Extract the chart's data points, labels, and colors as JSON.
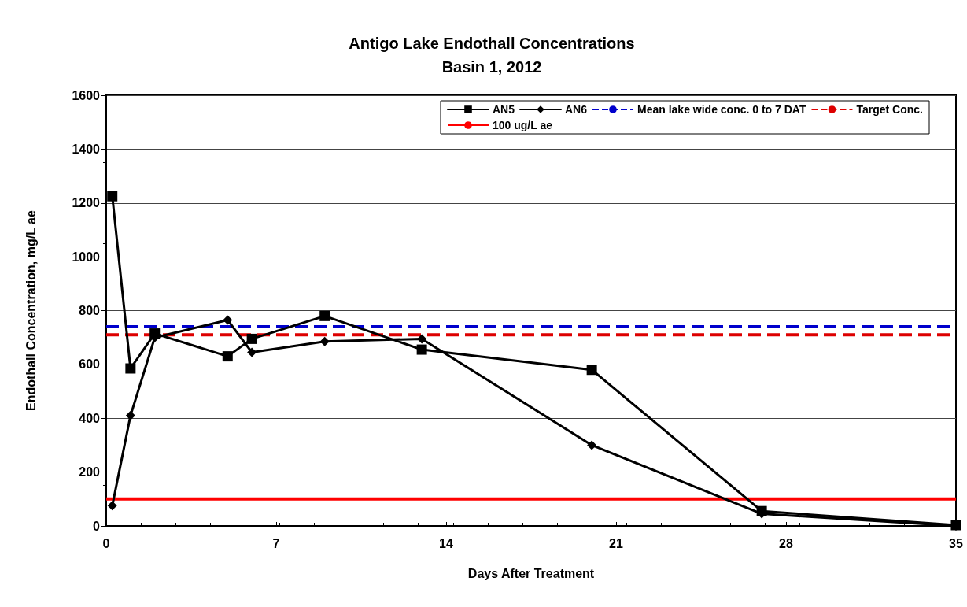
{
  "chart_data": {
    "type": "line",
    "title": "Antigo Lake Endothall Concentrations",
    "subtitle": "Basin 1, 2012",
    "xlabel": "Days After Treatment",
    "ylabel": "Endothall Concentration, mg/L ae",
    "xlim": [
      0,
      35
    ],
    "xticks": [
      0,
      7,
      14,
      21,
      28,
      35
    ],
    "ylim": [
      0,
      1600
    ],
    "yticks": [
      0,
      200,
      400,
      600,
      800,
      1000,
      1200,
      1400,
      1600
    ],
    "grid": "y",
    "legend": "top right",
    "line_style": "solid",
    "series": [
      {
        "name": "AN5",
        "color": "#000000",
        "marker": "square",
        "x": [
          0.25,
          1,
          2,
          5,
          6,
          9,
          13,
          20,
          27,
          35
        ],
        "values": [
          1225,
          585,
          715,
          630,
          695,
          780,
          655,
          580,
          55,
          3
        ]
      },
      {
        "name": "AN6",
        "color": "#000000",
        "marker": "diamond",
        "x": [
          0.25,
          1,
          2,
          5,
          6,
          9,
          13,
          20,
          27,
          35
        ],
        "values": [
          75,
          410,
          700,
          765,
          645,
          685,
          695,
          300,
          45,
          0
        ]
      }
    ],
    "ref_lines": [
      {
        "axis": "y",
        "value": 740,
        "label": "Mean lake wide conc. 0 to 7 DAT",
        "color": "#0000cc",
        "line_style": "dashed"
      },
      {
        "axis": "y",
        "value": 710,
        "label": "Target Conc.",
        "color": "#dd0000",
        "line_style": "dashed"
      },
      {
        "axis": "y",
        "value": 100,
        "label": "100 ug/L ae",
        "color": "#ff0000",
        "line_style": "solid"
      }
    ]
  }
}
